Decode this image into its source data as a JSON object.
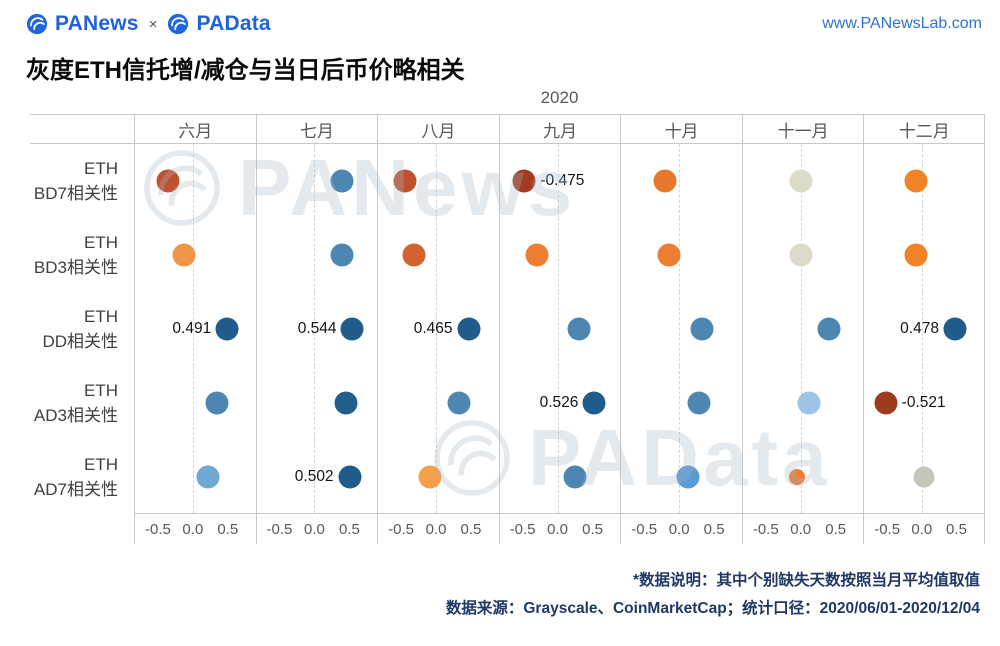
{
  "header": {
    "logo1": "PANews",
    "logo_sep": "×",
    "logo2": "PAData",
    "site": "www.PANewsLab.com"
  },
  "title": "灰度ETH信托增/减仓与当日后币价略相关",
  "watermarks": {
    "top": "PANews",
    "bottom": "PAData"
  },
  "footer": {
    "note1": "*数据说明：其中个别缺失天数按照当月平均值取值",
    "note2": "数据来源：Grayscale、CoinMarketCap；统计口径：2020/06/01-2020/12/04"
  },
  "chart_data": {
    "type": "scatter",
    "title": "灰度ETH信托增/减仓与当日后币价略相关",
    "year_label": "2020",
    "months": [
      "六月",
      "七月",
      "八月",
      "九月",
      "十月",
      "十一月",
      "十二月"
    ],
    "x_ticks": [
      "-0.5",
      "0.0",
      "0.5"
    ],
    "xlim": [
      -0.5,
      0.5
    ],
    "grid": "dashed-zero-line-per-month",
    "rows": [
      {
        "label_line1": "ETH",
        "label_line2": "BD7相关性",
        "points": [
          {
            "month": "六月",
            "value": -0.35,
            "color": "#C0512F"
          },
          {
            "month": "七月",
            "value": 0.4,
            "color": "#4E86B2"
          },
          {
            "month": "八月",
            "value": -0.45,
            "color": "#C0512F"
          },
          {
            "month": "九月",
            "value": -0.475,
            "color": "#A33B21",
            "label": "-0.475",
            "label_side": "right"
          },
          {
            "month": "十月",
            "value": -0.2,
            "color": "#E8772E"
          },
          {
            "month": "十一月",
            "value": 0.0,
            "color": "#DCDBC9"
          },
          {
            "month": "十二月",
            "value": -0.08,
            "color": "#F08327"
          }
        ]
      },
      {
        "label_line1": "ETH",
        "label_line2": "BD3相关性",
        "points": [
          {
            "month": "六月",
            "value": -0.13,
            "color": "#F0964A"
          },
          {
            "month": "七月",
            "value": 0.4,
            "color": "#4E86B2"
          },
          {
            "month": "八月",
            "value": -0.32,
            "color": "#D2622E"
          },
          {
            "month": "九月",
            "value": -0.3,
            "color": "#ED7D31"
          },
          {
            "month": "十月",
            "value": -0.15,
            "color": "#ED7D31"
          },
          {
            "month": "十一月",
            "value": 0.0,
            "color": "#DCDBC9"
          },
          {
            "month": "十二月",
            "value": -0.08,
            "color": "#F08327"
          }
        ]
      },
      {
        "label_line1": "ETH",
        "label_line2": "DD相关性",
        "points": [
          {
            "month": "六月",
            "value": 0.491,
            "color": "#1F5C8C",
            "label": "0.491",
            "label_side": "left"
          },
          {
            "month": "七月",
            "value": 0.544,
            "color": "#1F5C8C",
            "label": "0.544",
            "label_side": "left"
          },
          {
            "month": "八月",
            "value": 0.465,
            "color": "#1F5C8C",
            "label": "0.465",
            "label_side": "left"
          },
          {
            "month": "九月",
            "value": 0.3,
            "color": "#4E86B2"
          },
          {
            "month": "十月",
            "value": 0.33,
            "color": "#4E86B2"
          },
          {
            "month": "十一月",
            "value": 0.4,
            "color": "#4E86B2"
          },
          {
            "month": "十二月",
            "value": 0.478,
            "color": "#1F5C8C",
            "label": "0.478",
            "label_side": "left"
          }
        ]
      },
      {
        "label_line1": "ETH",
        "label_line2": "AD3相关性",
        "points": [
          {
            "month": "六月",
            "value": 0.35,
            "color": "#4E86B2"
          },
          {
            "month": "七月",
            "value": 0.45,
            "color": "#215E8E"
          },
          {
            "month": "八月",
            "value": 0.33,
            "color": "#4E86B2"
          },
          {
            "month": "九月",
            "value": 0.526,
            "color": "#1F5C8C",
            "label": "0.526",
            "label_side": "left"
          },
          {
            "month": "十月",
            "value": 0.28,
            "color": "#4E86B2"
          },
          {
            "month": "十一月",
            "value": 0.12,
            "color": "#9DC3E6"
          },
          {
            "month": "十二月",
            "value": -0.521,
            "color": "#9E3A1E",
            "label": "-0.521",
            "label_side": "right"
          }
        ]
      },
      {
        "label_line1": "ETH",
        "label_line2": "AD7相关性",
        "points": [
          {
            "month": "六月",
            "value": 0.22,
            "color": "#6FA8D2"
          },
          {
            "month": "七月",
            "value": 0.502,
            "color": "#1F5C8C",
            "label": "0.502",
            "label_side": "left"
          },
          {
            "month": "八月",
            "value": -0.08,
            "color": "#F2A04C"
          },
          {
            "month": "九月",
            "value": 0.25,
            "color": "#4E86B2"
          },
          {
            "month": "十月",
            "value": 0.12,
            "color": "#5B9BD5"
          },
          {
            "month": "十一月",
            "value": -0.06,
            "color": "#ED7D31",
            "size": 16
          },
          {
            "month": "十二月",
            "value": 0.03,
            "color": "#C6C5BA",
            "size": 21
          }
        ]
      }
    ]
  },
  "colors": {
    "strong_negative": "#A33B21",
    "negative": "#ED7D31",
    "neutral": "#DCDBC9",
    "positive": "#4E86B2",
    "strong_positive": "#1F5C8C",
    "brand_blue": "#1F62D9",
    "footer_navy": "#1F3864"
  }
}
